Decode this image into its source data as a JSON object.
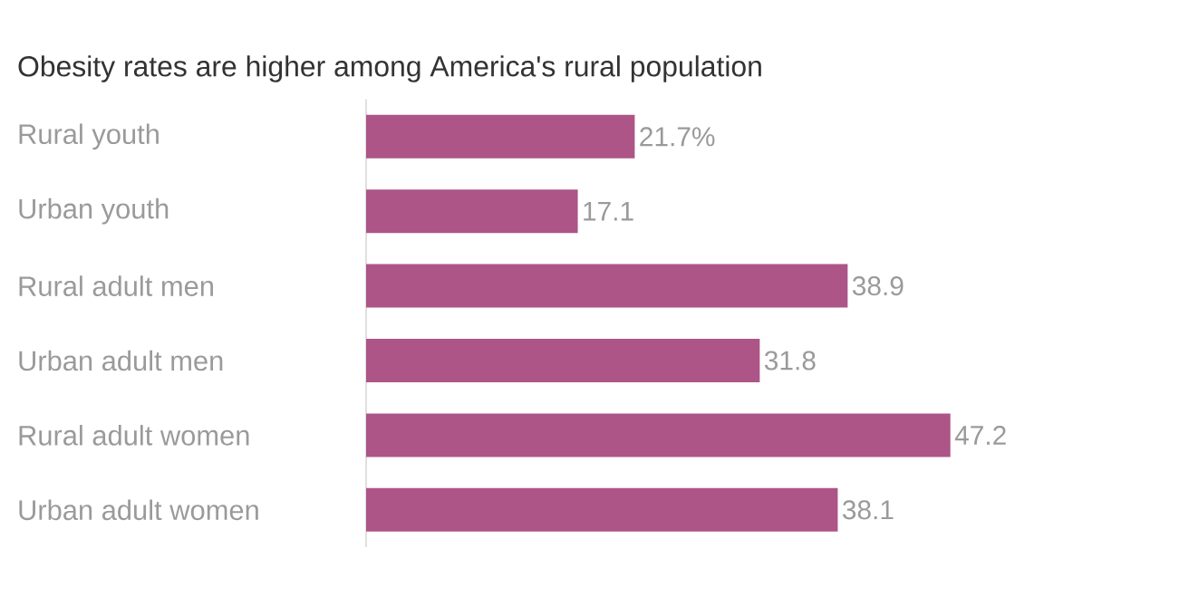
{
  "chart_data": {
    "type": "bar",
    "orientation": "horizontal",
    "title": "Obesity rates are higher among America's rural population",
    "categories": [
      "Rural youth",
      "Urban youth",
      "Rural adult men",
      "Urban adult men",
      "Rural adult women",
      "Urban adult women"
    ],
    "values": [
      21.7,
      17.1,
      38.9,
      31.8,
      47.2,
      38.1
    ],
    "value_labels": [
      "21.7%",
      "17.1",
      "38.9",
      "31.8",
      "47.2",
      "38.1"
    ],
    "color": "#ad5586"
  }
}
